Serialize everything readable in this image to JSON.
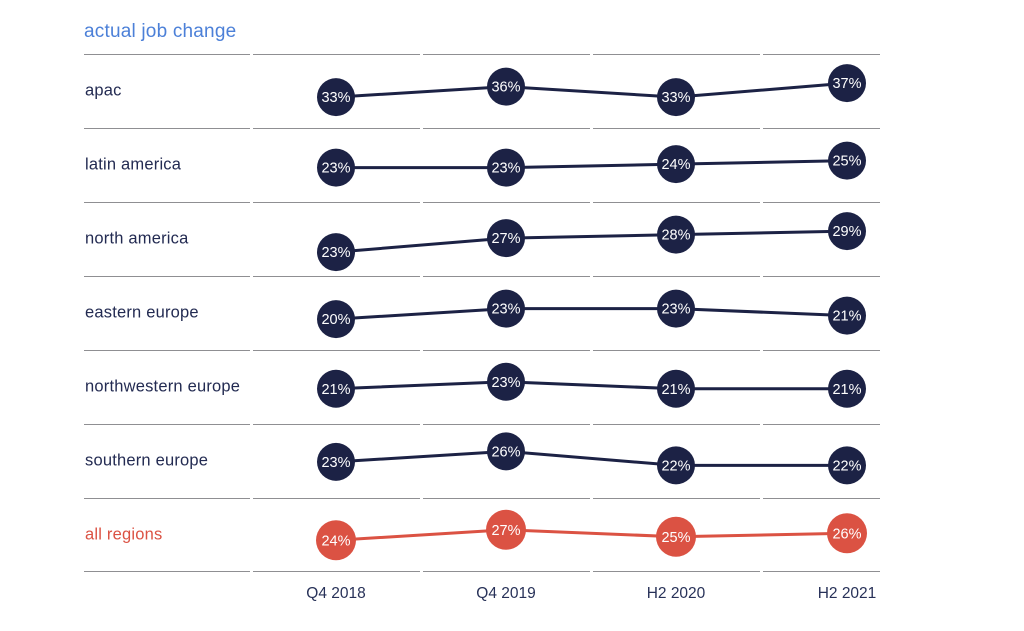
{
  "title": "actual job change",
  "colors": {
    "title_blue": "#4c80d8",
    "navy": "#1c2245",
    "red": "#db5243",
    "grid_line": "#8f8f92",
    "label_navy": "#232b52",
    "axis_text": "#273158",
    "point_text": "#ffffff"
  },
  "chart_data": {
    "type": "line",
    "layout": "small-multiples-rows",
    "title": "actual job change",
    "value_suffix": "%",
    "grid": "horizontal-row-separators",
    "categories": [
      "Q4 2018",
      "Q4 2019",
      "H2 2020",
      "H2 2021"
    ],
    "series": [
      {
        "name": "apac",
        "values": [
          33,
          36,
          33,
          37
        ],
        "color": "navy"
      },
      {
        "name": "latin america",
        "values": [
          23,
          23,
          24,
          25
        ],
        "color": "navy"
      },
      {
        "name": "north america",
        "values": [
          23,
          27,
          28,
          29
        ],
        "color": "navy"
      },
      {
        "name": "eastern europe",
        "values": [
          20,
          23,
          23,
          21
        ],
        "color": "navy"
      },
      {
        "name": "northwestern europe",
        "values": [
          21,
          23,
          21,
          21
        ],
        "color": "navy"
      },
      {
        "name": "southern europe",
        "values": [
          23,
          26,
          22,
          22
        ],
        "color": "navy"
      },
      {
        "name": "all regions",
        "values": [
          24,
          27,
          25,
          26
        ],
        "color": "red"
      }
    ]
  }
}
